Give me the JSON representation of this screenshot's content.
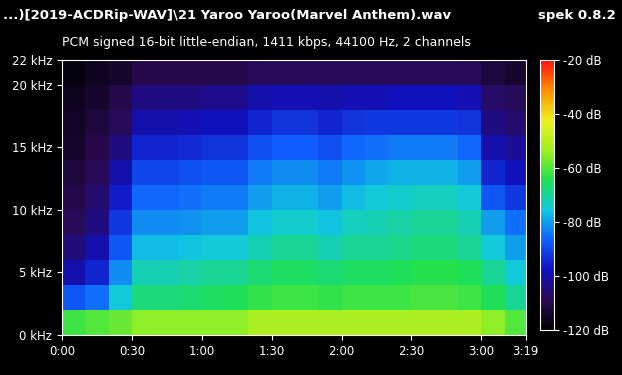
{
  "chart_data": {
    "type": "heatmap",
    "title": "...)[2019-ACDRip-WAV]\\21 Yaroo Yaroo(Marvel Anthem).wav",
    "subtitle": "PCM signed 16-bit little-endian, 1411 kbps, 44100 Hz, 2 channels",
    "annotations": [
      "spek 0.8.2"
    ],
    "x": [
      0,
      10,
      20,
      30,
      40,
      50,
      60,
      70,
      80,
      90,
      100,
      110,
      120,
      130,
      140,
      150,
      160,
      170,
      180,
      190,
      199
    ],
    "y": [
      0,
      2,
      4,
      6,
      8,
      10,
      12,
      14,
      16,
      18,
      20,
      22
    ],
    "cells": [
      [
        -62,
        -60,
        -58,
        -55,
        -55,
        -55,
        -55,
        -55,
        -52,
        -52,
        -52,
        -52,
        -52,
        -52,
        -52,
        -52,
        -52,
        -52,
        -55,
        -60
      ],
      [
        -88,
        -85,
        -75,
        -68,
        -68,
        -67,
        -66,
        -65,
        -63,
        -62,
        -62,
        -63,
        -62,
        -62,
        -62,
        -61,
        -61,
        -62,
        -65,
        -70
      ],
      [
        -100,
        -95,
        -82,
        -72,
        -72,
        -71,
        -70,
        -70,
        -67,
        -66,
        -66,
        -67,
        -66,
        -66,
        -65,
        -64,
        -64,
        -65,
        -70,
        -75
      ],
      [
        -105,
        -100,
        -88,
        -77,
        -77,
        -76,
        -75,
        -75,
        -72,
        -70,
        -70,
        -72,
        -70,
        -70,
        -69,
        -68,
        -68,
        -70,
        -75,
        -80
      ],
      [
        -108,
        -104,
        -92,
        -82,
        -82,
        -81,
        -80,
        -80,
        -76,
        -74,
        -74,
        -76,
        -73,
        -72,
        -71,
        -70,
        -70,
        -72,
        -80,
        -85
      ],
      [
        -110,
        -106,
        -96,
        -86,
        -86,
        -85,
        -84,
        -84,
        -80,
        -78,
        -78,
        -80,
        -77,
        -75,
        -74,
        -73,
        -73,
        -75,
        -88,
        -92
      ],
      [
        -112,
        -108,
        -100,
        -90,
        -90,
        -89,
        -88,
        -88,
        -84,
        -82,
        -82,
        -84,
        -81,
        -79,
        -78,
        -78,
        -78,
        -80,
        -95,
        -98
      ],
      [
        -114,
        -110,
        -104,
        -95,
        -95,
        -94,
        -93,
        -93,
        -89,
        -87,
        -87,
        -89,
        -86,
        -85,
        -84,
        -84,
        -84,
        -86,
        -100,
        -102
      ],
      [
        -115,
        -112,
        -108,
        -100,
        -100,
        -99,
        -98,
        -98,
        -95,
        -93,
        -93,
        -95,
        -93,
        -92,
        -92,
        -92,
        -92,
        -93,
        -104,
        -106
      ],
      [
        -116,
        -114,
        -110,
        -104,
        -104,
        -104,
        -103,
        -103,
        -100,
        -99,
        -99,
        -100,
        -99,
        -99,
        -98,
        -98,
        -98,
        -99,
        -107,
        -108
      ],
      [
        -118,
        -116,
        -114,
        -110,
        -110,
        -110,
        -110,
        -110,
        -108,
        -108,
        -108,
        -108,
        -108,
        -108,
        -108,
        -108,
        -108,
        -108,
        -112,
        -114
      ]
    ],
    "xlim": [
      0,
      199
    ],
    "ylim": [
      0,
      22
    ],
    "xticks": [
      {
        "value": 0,
        "label": "0:00"
      },
      {
        "value": 30,
        "label": "0:30"
      },
      {
        "value": 60,
        "label": "1:00"
      },
      {
        "value": 90,
        "label": "1:30"
      },
      {
        "value": 120,
        "label": "2:00"
      },
      {
        "value": 150,
        "label": "2:30"
      },
      {
        "value": 180,
        "label": "3:00"
      },
      {
        "value": 199,
        "label": "3:19"
      }
    ],
    "yticks": [
      {
        "value": 0,
        "label": "0 kHz"
      },
      {
        "value": 5,
        "label": "5 kHz"
      },
      {
        "value": 10,
        "label": "10 kHz"
      },
      {
        "value": 15,
        "label": "15 kHz"
      },
      {
        "value": 20,
        "label": "20 kHz"
      },
      {
        "value": 22,
        "label": "22 kHz"
      }
    ],
    "colorbar": {
      "range": [
        -120,
        -20
      ],
      "ticks": [
        {
          "value": -20,
          "label": "-20 dB"
        },
        {
          "value": -40,
          "label": "-40 dB"
        },
        {
          "value": -60,
          "label": "-60 dB"
        },
        {
          "value": -80,
          "label": "-80 dB"
        },
        {
          "value": -100,
          "label": "-100 dB"
        },
        {
          "value": -120,
          "label": "-120 dB"
        }
      ]
    }
  }
}
